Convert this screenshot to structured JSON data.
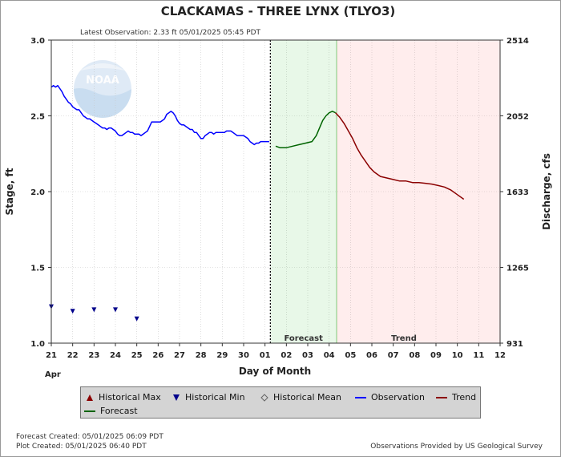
{
  "chart_data": {
    "type": "line",
    "title": "CLACKAMAS - THREE LYNX  (TLYO3)",
    "subtitle": "Latest Observation: 2.33 ft 05/01/2025 05:45 PDT",
    "xlabel": "Day of Month",
    "ylabel": "Stage, ft",
    "y2label": "Discharge, cfs",
    "month_label": "Apr",
    "x_ticks": [
      "21",
      "22",
      "23",
      "24",
      "25",
      "26",
      "27",
      "28",
      "29",
      "30",
      "01",
      "02",
      "03",
      "04",
      "05",
      "06",
      "07",
      "08",
      "09",
      "10",
      "11",
      "12"
    ],
    "xlim": [
      0,
      21
    ],
    "ylim": [
      1.0,
      3.0
    ],
    "y_ticks": [
      "1.0",
      "1.5",
      "2.0",
      "2.5",
      "3.0"
    ],
    "y2_ticks": [
      "931",
      "1265",
      "1633",
      "2052",
      "2514"
    ],
    "grid": true,
    "now_x": 10.25,
    "forecast_region": [
      10.25,
      13.35
    ],
    "trend_region": [
      13.35,
      21.0
    ],
    "region_labels": {
      "forecast": "Forecast",
      "trend": "Trend"
    },
    "series": [
      {
        "name": "Observation",
        "color": "#0000ff",
        "x": [
          0.0,
          0.1,
          0.2,
          0.3,
          0.4,
          0.5,
          0.6,
          0.7,
          0.8,
          0.9,
          1.0,
          1.1,
          1.2,
          1.3,
          1.4,
          1.5,
          1.6,
          1.7,
          1.8,
          1.9,
          2.0,
          2.1,
          2.2,
          2.3,
          2.4,
          2.5,
          2.6,
          2.7,
          2.8,
          2.9,
          3.0,
          3.1,
          3.2,
          3.3,
          3.4,
          3.5,
          3.6,
          3.7,
          3.8,
          3.9,
          4.0,
          4.1,
          4.2,
          4.3,
          4.4,
          4.5,
          4.6,
          4.7,
          4.8,
          4.9,
          5.0,
          5.1,
          5.2,
          5.3,
          5.4,
          5.5,
          5.6,
          5.7,
          5.8,
          5.9,
          6.0,
          6.1,
          6.2,
          6.3,
          6.4,
          6.5,
          6.6,
          6.7,
          6.8,
          6.9,
          7.0,
          7.1,
          7.2,
          7.3,
          7.4,
          7.5,
          7.6,
          7.7,
          7.8,
          7.9,
          8.0,
          8.1,
          8.2,
          8.3,
          8.4,
          8.5,
          8.6,
          8.7,
          8.8,
          8.9,
          9.0,
          9.1,
          9.2,
          9.3,
          9.4,
          9.5,
          9.6,
          9.7,
          9.8,
          9.9,
          10.0,
          10.1,
          10.2
        ],
        "y": [
          2.69,
          2.7,
          2.69,
          2.7,
          2.68,
          2.66,
          2.63,
          2.61,
          2.59,
          2.58,
          2.56,
          2.55,
          2.54,
          2.54,
          2.52,
          2.5,
          2.49,
          2.48,
          2.48,
          2.47,
          2.46,
          2.45,
          2.44,
          2.43,
          2.42,
          2.42,
          2.41,
          2.42,
          2.42,
          2.41,
          2.4,
          2.38,
          2.37,
          2.37,
          2.38,
          2.39,
          2.4,
          2.39,
          2.39,
          2.38,
          2.38,
          2.38,
          2.37,
          2.38,
          2.39,
          2.4,
          2.43,
          2.46,
          2.46,
          2.46,
          2.46,
          2.46,
          2.47,
          2.48,
          2.51,
          2.52,
          2.53,
          2.52,
          2.5,
          2.47,
          2.45,
          2.44,
          2.44,
          2.43,
          2.42,
          2.41,
          2.41,
          2.39,
          2.39,
          2.37,
          2.35,
          2.35,
          2.37,
          2.38,
          2.39,
          2.39,
          2.38,
          2.39,
          2.39,
          2.39,
          2.39,
          2.39,
          2.4,
          2.4,
          2.4,
          2.39,
          2.38,
          2.37,
          2.37,
          2.37,
          2.37,
          2.36,
          2.35,
          2.33,
          2.32,
          2.31,
          2.32,
          2.32,
          2.33,
          2.33,
          2.33,
          2.33,
          2.33
        ]
      },
      {
        "name": "Forecast",
        "color": "#006400",
        "x": [
          10.5,
          10.7,
          11.0,
          11.3,
          11.6,
          11.9,
          12.2,
          12.4,
          12.55,
          12.7,
          12.85,
          13.0,
          13.15,
          13.3
        ],
        "y": [
          2.3,
          2.29,
          2.29,
          2.3,
          2.31,
          2.32,
          2.33,
          2.37,
          2.42,
          2.47,
          2.5,
          2.52,
          2.53,
          2.52
        ]
      },
      {
        "name": "Trend",
        "color": "#8b0000",
        "x": [
          13.3,
          13.5,
          13.7,
          13.9,
          14.1,
          14.3,
          14.5,
          14.7,
          14.9,
          15.1,
          15.4,
          15.7,
          16.0,
          16.3,
          16.6,
          16.9,
          17.2,
          17.5,
          17.8,
          18.1,
          18.4,
          18.7,
          19.0,
          19.3
        ],
        "y": [
          2.52,
          2.49,
          2.45,
          2.4,
          2.35,
          2.29,
          2.24,
          2.2,
          2.16,
          2.13,
          2.1,
          2.09,
          2.08,
          2.07,
          2.07,
          2.06,
          2.06,
          2.055,
          2.05,
          2.04,
          2.03,
          2.01,
          1.98,
          1.95
        ]
      },
      {
        "name": "Historical Min",
        "color": "#00008b",
        "x": [
          0.0,
          1.0,
          2.0,
          3.0,
          4.0
        ],
        "y": [
          1.24,
          1.21,
          1.22,
          1.22,
          1.16
        ]
      }
    ],
    "legend": [
      {
        "label": "Historical Max",
        "symbol": "triangle-up",
        "color": "#8b0000"
      },
      {
        "label": "Historical Min",
        "symbol": "triangle-down",
        "color": "#00008b"
      },
      {
        "label": "Historical Mean",
        "symbol": "diamond",
        "color": "#888888"
      },
      {
        "label": "Observation",
        "symbol": "line",
        "color": "#0000ff"
      },
      {
        "label": "Trend",
        "symbol": "line",
        "color": "#8b0000"
      },
      {
        "label": "Forecast",
        "symbol": "line",
        "color": "#006400"
      }
    ],
    "legend_position": "bottom"
  },
  "logo_text": "NOAA",
  "footer": {
    "forecast_created": "Forecast Created: 05/01/2025 06:09 PDT",
    "plot_created": "Plot Created: 05/01/2025 06:40 PDT",
    "credit": "Observations Provided by US Geological Survey"
  }
}
